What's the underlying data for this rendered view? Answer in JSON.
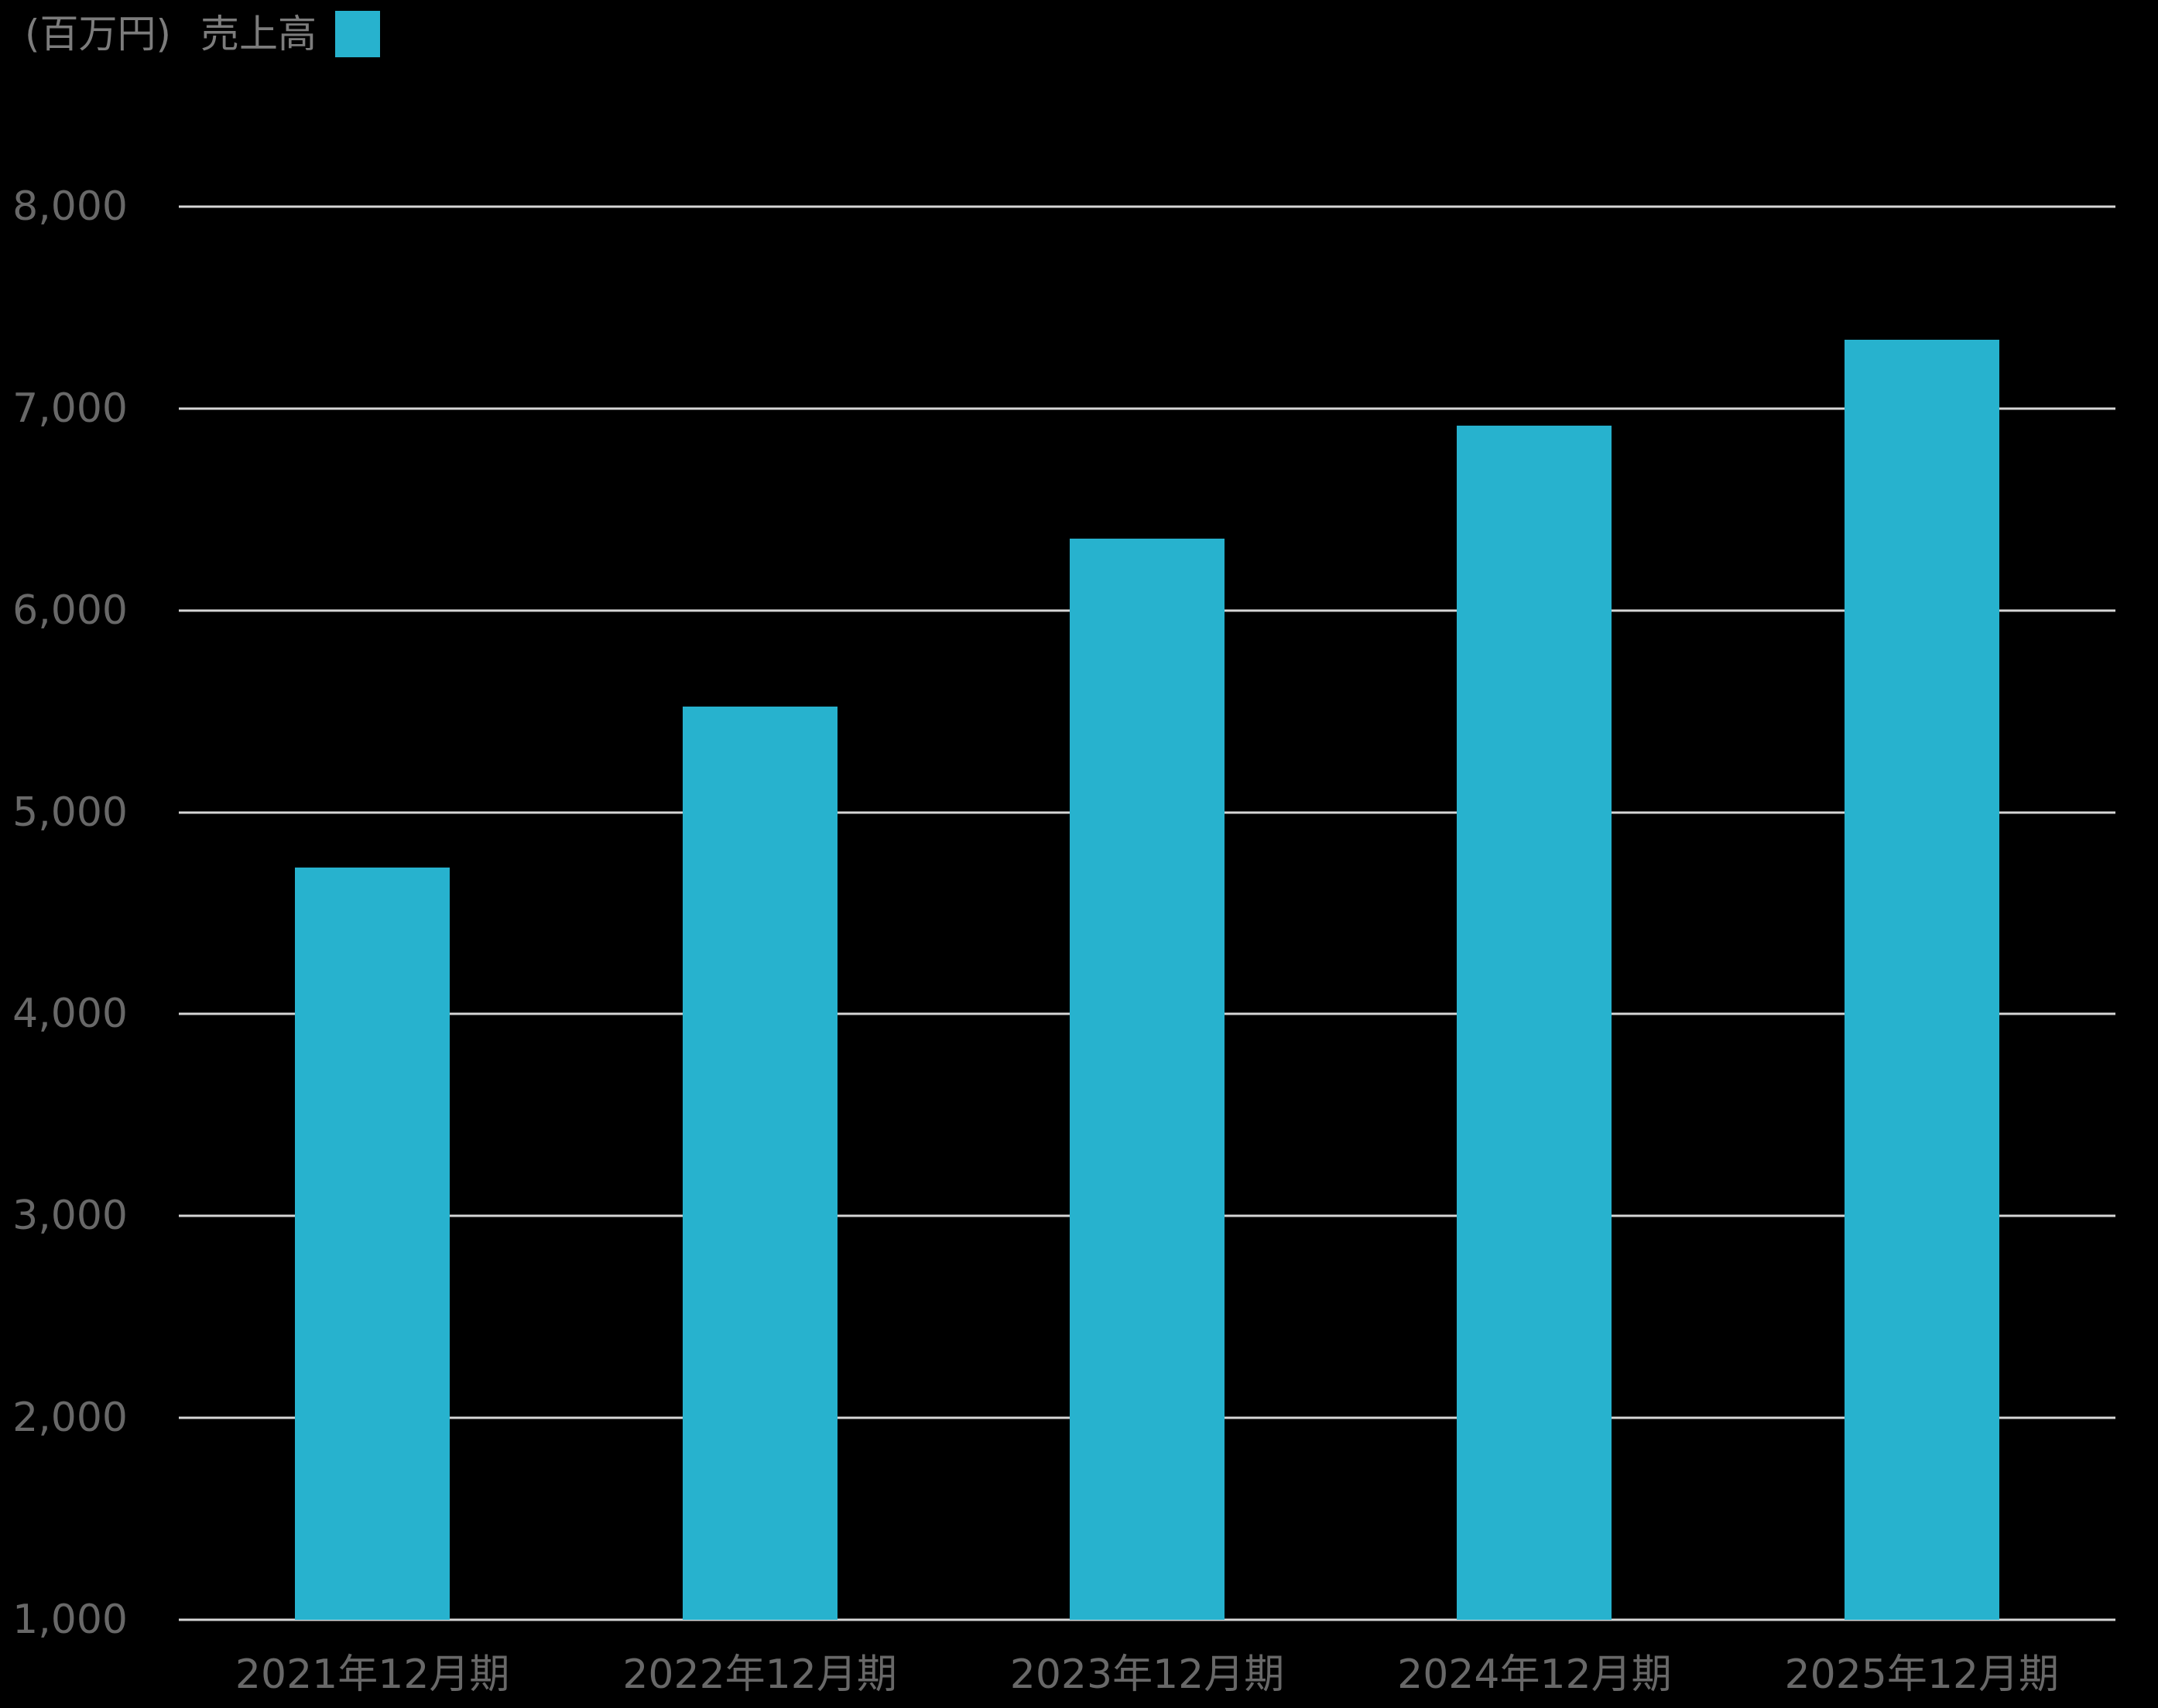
{
  "page": {
    "background": "#000000"
  },
  "legend": {
    "unit_label": "(百万円)",
    "series_label": "売上高",
    "swatch_color": "#27b2ce"
  },
  "chart_data": {
    "type": "bar",
    "title": "売上高",
    "unit": "百万円",
    "categories": [
      "2021年12月期",
      "2022年12月期",
      "2023年12月期",
      "2024年12月期",
      "2025年12月期"
    ],
    "values": [
      4725,
      5525,
      6355,
      6915,
      7340
    ],
    "xlabel": "",
    "ylabel": "(百万円)",
    "ylim": [
      1000,
      8000
    ],
    "yticks": [
      {
        "value": 8000,
        "label": "8,000"
      },
      {
        "value": 7000,
        "label": "7,000"
      },
      {
        "value": 6000,
        "label": "6,000"
      },
      {
        "value": 5000,
        "label": "5,000"
      },
      {
        "value": 4000,
        "label": "4,000"
      },
      {
        "value": 3000,
        "label": "3,000"
      },
      {
        "value": 2000,
        "label": "2,000"
      },
      {
        "value": 1000,
        "label": "1,000"
      }
    ],
    "grid": true,
    "legend_position": "top-left",
    "bar_color": "#27b2ce",
    "gridline_color": "#d6d6d6",
    "axis_text_color": "#686868",
    "legend_text_color": "#7c7c7c"
  }
}
